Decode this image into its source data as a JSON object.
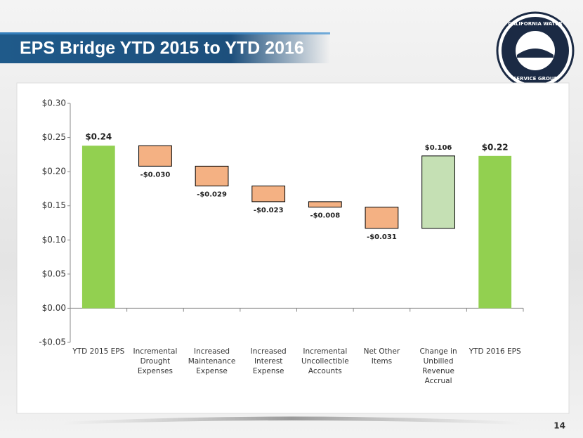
{
  "slide": {
    "title": "EPS Bridge YTD 2015 to YTD 2016",
    "page_number": "14",
    "logo": {
      "top": "CALIFORNIA WATER",
      "bottom": "SERVICE GROUP"
    }
  },
  "chart_data": {
    "type": "waterfall",
    "categories": [
      "YTD 2015 EPS",
      "Incremental Drought Expenses",
      "Increased Maintenance Expense",
      "Increased Interest Expense",
      "Incremental Uncollectible Accounts",
      "Net Other Items",
      "Change in Unbilled Revenue Accrual",
      "YTD 2016 EPS"
    ],
    "values": [
      0.238,
      -0.03,
      -0.029,
      -0.023,
      -0.008,
      -0.031,
      0.106,
      0.223
    ],
    "value_labels": [
      "$0.24",
      "-$0.030",
      "-$0.029",
      "-$0.023",
      "-$0.008",
      "-$0.031",
      "$0.106",
      "$0.22"
    ],
    "total_color": "#92d050",
    "decrease_color": "#f4b183",
    "increase_color": "#c5e0b4",
    "ylim": [
      -0.05,
      0.3
    ],
    "yticks": [
      {
        "value": -0.05,
        "label": "-$0.05"
      },
      {
        "value": 0,
        "label": "$0.00"
      },
      {
        "value": 0.05,
        "label": "$0.05"
      },
      {
        "value": 0.1,
        "label": "$0.10"
      },
      {
        "value": 0.15,
        "label": "$0.15"
      },
      {
        "value": 0.2,
        "label": "$0.20"
      },
      {
        "value": 0.25,
        "label": "$0.25"
      },
      {
        "value": 0.3,
        "label": "$0.30"
      }
    ],
    "grid": false
  }
}
